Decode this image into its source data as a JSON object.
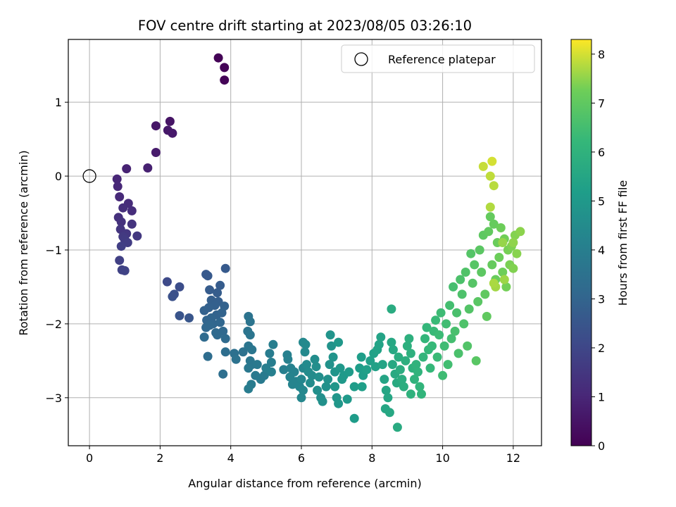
{
  "chart_data": {
    "type": "scatter",
    "title": "FOV centre drift starting at 2023/08/05 03:26:10",
    "xlabel": "Angular distance from reference (arcmin)",
    "ylabel": "Rotation from reference (arcmin)",
    "xlim": [
      -0.6,
      12.8
    ],
    "ylim": [
      -3.65,
      1.85
    ],
    "xticks": [
      0,
      2,
      4,
      6,
      8,
      10,
      12
    ],
    "yticks": [
      -3,
      -2,
      -1,
      0,
      1
    ],
    "grid": true,
    "legend": {
      "position": "top-right",
      "entries": [
        "Reference platepar"
      ]
    },
    "reference_point": {
      "label": "Reference platepar",
      "x": 0,
      "y": 0
    },
    "colorbar": {
      "label": "Hours from first FF file",
      "min": 0,
      "max": 8.3,
      "ticks": [
        0,
        1,
        2,
        3,
        4,
        5,
        6,
        7,
        8
      ],
      "colormap": "viridis"
    },
    "points": [
      [
        3.65,
        1.6,
        0.05
      ],
      [
        3.82,
        1.47,
        0.08
      ],
      [
        3.82,
        1.3,
        0.1
      ],
      [
        2.28,
        0.74,
        0.5
      ],
      [
        1.88,
        0.68,
        0.55
      ],
      [
        2.22,
        0.62,
        0.6
      ],
      [
        2.35,
        0.58,
        0.62
      ],
      [
        1.88,
        0.32,
        0.7
      ],
      [
        1.65,
        0.11,
        0.85
      ],
      [
        1.05,
        0.1,
        0.9
      ],
      [
        0.78,
        -0.04,
        1.0
      ],
      [
        0.8,
        -0.14,
        1.05
      ],
      [
        0.85,
        -0.28,
        1.1
      ],
      [
        1.1,
        -0.37,
        1.15
      ],
      [
        1.2,
        -0.47,
        1.2
      ],
      [
        0.95,
        -0.43,
        1.25
      ],
      [
        0.82,
        -0.56,
        1.3
      ],
      [
        0.9,
        -0.62,
        1.35
      ],
      [
        1.2,
        -0.65,
        1.4
      ],
      [
        0.88,
        -0.72,
        1.45
      ],
      [
        1.05,
        -0.78,
        1.5
      ],
      [
        1.35,
        -0.81,
        1.55
      ],
      [
        0.95,
        -0.82,
        1.6
      ],
      [
        1.0,
        -0.86,
        1.65
      ],
      [
        1.08,
        -0.9,
        1.7
      ],
      [
        0.9,
        -0.95,
        1.75
      ],
      [
        0.85,
        -1.14,
        1.8
      ],
      [
        0.92,
        -1.27,
        1.85
      ],
      [
        1.0,
        -1.28,
        1.9
      ],
      [
        2.2,
        -1.43,
        2.1
      ],
      [
        2.55,
        -1.5,
        2.2
      ],
      [
        2.4,
        -1.6,
        2.3
      ],
      [
        2.35,
        -1.63,
        2.35
      ],
      [
        2.55,
        -1.89,
        2.45
      ],
      [
        2.82,
        -1.92,
        2.5
      ],
      [
        3.3,
        -1.33,
        2.6
      ],
      [
        3.35,
        -1.35,
        2.62
      ],
      [
        3.85,
        -1.25,
        2.65
      ],
      [
        3.4,
        -1.54,
        2.7
      ],
      [
        3.7,
        -1.48,
        2.72
      ],
      [
        3.62,
        -1.58,
        2.75
      ],
      [
        3.45,
        -1.68,
        2.8
      ],
      [
        3.65,
        -1.7,
        2.82
      ],
      [
        3.55,
        -1.75,
        2.85
      ],
      [
        3.38,
        -1.78,
        2.88
      ],
      [
        3.25,
        -1.82,
        2.9
      ],
      [
        3.82,
        -1.76,
        2.92
      ],
      [
        3.6,
        -1.88,
        2.95
      ],
      [
        3.75,
        -1.85,
        2.98
      ],
      [
        3.45,
        -1.92,
        3.0
      ],
      [
        3.32,
        -1.95,
        3.02
      ],
      [
        3.5,
        -2.0,
        3.05
      ],
      [
        3.7,
        -1.98,
        3.08
      ],
      [
        3.3,
        -2.05,
        3.1
      ],
      [
        3.4,
        -2.02,
        3.12
      ],
      [
        3.78,
        -2.1,
        3.15
      ],
      [
        3.58,
        -2.12,
        3.18
      ],
      [
        3.62,
        -2.15,
        3.2
      ],
      [
        3.25,
        -2.18,
        3.22
      ],
      [
        3.85,
        -2.2,
        3.25
      ],
      [
        3.35,
        -2.44,
        3.3
      ],
      [
        3.85,
        -2.38,
        3.35
      ],
      [
        3.78,
        -2.68,
        3.4
      ],
      [
        4.1,
        -2.4,
        3.45
      ],
      [
        4.15,
        -2.48,
        3.5
      ],
      [
        4.35,
        -2.38,
        3.52
      ],
      [
        4.5,
        -1.9,
        3.55
      ],
      [
        4.55,
        -1.97,
        3.58
      ],
      [
        4.48,
        -2.1,
        3.6
      ],
      [
        4.55,
        -2.15,
        3.62
      ],
      [
        4.5,
        -2.3,
        3.65
      ],
      [
        4.6,
        -2.35,
        3.68
      ],
      [
        4.55,
        -2.5,
        3.7
      ],
      [
        4.6,
        -2.55,
        3.72
      ],
      [
        4.5,
        -2.6,
        3.75
      ],
      [
        4.75,
        -2.55,
        3.78
      ],
      [
        4.7,
        -2.7,
        3.8
      ],
      [
        4.85,
        -2.75,
        3.82
      ],
      [
        4.95,
        -2.7,
        3.85
      ],
      [
        4.58,
        -2.82,
        3.88
      ],
      [
        4.5,
        -2.88,
        3.9
      ],
      [
        5.1,
        -2.4,
        3.92
      ],
      [
        5.15,
        -2.52,
        3.95
      ],
      [
        5.2,
        -2.28,
        3.98
      ],
      [
        5.0,
        -2.6,
        4.0
      ],
      [
        5.15,
        -2.65,
        4.02
      ],
      [
        5.5,
        -2.62,
        4.05
      ],
      [
        5.6,
        -2.42,
        4.08
      ],
      [
        5.62,
        -2.48,
        4.1
      ],
      [
        5.7,
        -2.6,
        4.12
      ],
      [
        5.8,
        -2.65,
        4.15
      ],
      [
        5.68,
        -2.72,
        4.18
      ],
      [
        5.85,
        -2.78,
        4.2
      ],
      [
        5.75,
        -2.82,
        4.22
      ],
      [
        5.95,
        -2.85,
        4.25
      ],
      [
        6.05,
        -2.6,
        4.28
      ],
      [
        6.0,
        -2.75,
        4.3
      ],
      [
        6.05,
        -2.9,
        4.32
      ],
      [
        6.0,
        -3.0,
        4.35
      ],
      [
        6.05,
        -2.25,
        4.38
      ],
      [
        6.12,
        -2.28,
        4.4
      ],
      [
        6.1,
        -2.38,
        4.42
      ],
      [
        6.15,
        -2.55,
        4.45
      ],
      [
        6.2,
        -2.65,
        4.48
      ],
      [
        6.3,
        -2.7,
        4.5
      ],
      [
        6.25,
        -2.8,
        4.52
      ],
      [
        6.38,
        -2.48,
        4.55
      ],
      [
        6.42,
        -2.58,
        4.58
      ],
      [
        6.5,
        -2.72,
        4.6
      ],
      [
        6.45,
        -2.9,
        4.62
      ],
      [
        6.55,
        -3.0,
        4.65
      ],
      [
        6.6,
        -3.05,
        4.68
      ],
      [
        6.7,
        -2.85,
        4.7
      ],
      [
        6.75,
        -2.75,
        4.72
      ],
      [
        6.8,
        -2.55,
        4.75
      ],
      [
        6.85,
        -2.3,
        4.78
      ],
      [
        6.82,
        -2.15,
        4.8
      ],
      [
        6.9,
        -2.45,
        4.82
      ],
      [
        6.95,
        -2.65,
        4.85
      ],
      [
        6.95,
        -2.85,
        4.88
      ],
      [
        7.0,
        -3.0,
        4.9
      ],
      [
        7.05,
        -3.08,
        4.92
      ],
      [
        7.05,
        -2.25,
        4.95
      ],
      [
        7.1,
        -2.6,
        4.98
      ],
      [
        7.15,
        -2.75,
        5.0
      ],
      [
        7.2,
        -2.7,
        5.02
      ],
      [
        7.3,
        -3.02,
        5.05
      ],
      [
        7.35,
        -2.65,
        5.08
      ],
      [
        7.5,
        -2.85,
        5.1
      ],
      [
        7.5,
        -3.28,
        5.12
      ],
      [
        7.65,
        -2.6,
        5.15
      ],
      [
        7.7,
        -2.45,
        5.18
      ],
      [
        7.75,
        -2.7,
        5.2
      ],
      [
        7.72,
        -2.85,
        5.22
      ],
      [
        7.85,
        -2.62,
        5.25
      ],
      [
        7.95,
        -2.5,
        5.28
      ],
      [
        8.05,
        -2.4,
        5.3
      ],
      [
        8.1,
        -2.58,
        5.32
      ],
      [
        8.15,
        -2.35,
        5.35
      ],
      [
        8.2,
        -2.28,
        5.38
      ],
      [
        8.25,
        -2.18,
        5.4
      ],
      [
        8.3,
        -2.55,
        5.42
      ],
      [
        8.35,
        -2.75,
        5.45
      ],
      [
        8.4,
        -2.9,
        5.48
      ],
      [
        8.45,
        -3.0,
        5.5
      ],
      [
        8.38,
        -3.15,
        5.52
      ],
      [
        8.5,
        -3.2,
        5.55
      ],
      [
        8.55,
        -2.25,
        5.58
      ],
      [
        8.6,
        -2.35,
        5.6
      ],
      [
        8.58,
        -2.55,
        5.62
      ],
      [
        8.65,
        -2.68,
        5.65
      ],
      [
        8.7,
        -2.8,
        5.68
      ],
      [
        8.72,
        -3.4,
        5.7
      ],
      [
        8.55,
        -1.8,
        5.72
      ],
      [
        8.75,
        -2.45,
        5.75
      ],
      [
        8.8,
        -2.62,
        5.78
      ],
      [
        8.85,
        -2.75,
        5.8
      ],
      [
        8.9,
        -2.85,
        5.82
      ],
      [
        8.95,
        -2.5,
        5.85
      ],
      [
        9.0,
        -2.3,
        5.88
      ],
      [
        9.05,
        -2.2,
        5.9
      ],
      [
        9.1,
        -2.4,
        5.92
      ],
      [
        9.15,
        -2.6,
        5.95
      ],
      [
        9.1,
        -2.95,
        5.98
      ],
      [
        9.2,
        -2.75,
        6.0
      ],
      [
        9.25,
        -2.55,
        6.02
      ],
      [
        9.3,
        -2.65,
        6.05
      ],
      [
        9.35,
        -2.85,
        6.08
      ],
      [
        9.4,
        -2.95,
        6.1
      ],
      [
        9.45,
        -2.45,
        6.12
      ],
      [
        9.5,
        -2.2,
        6.15
      ],
      [
        9.55,
        -2.05,
        6.18
      ],
      [
        9.6,
        -2.35,
        6.2
      ],
      [
        9.65,
        -2.6,
        6.22
      ],
      [
        9.7,
        -2.3,
        6.25
      ],
      [
        9.75,
        -2.1,
        6.28
      ],
      [
        9.8,
        -1.95,
        6.3
      ],
      [
        9.85,
        -2.45,
        6.32
      ],
      [
        9.9,
        -2.15,
        6.35
      ],
      [
        9.95,
        -1.85,
        6.38
      ],
      [
        10.0,
        -2.7,
        6.4
      ],
      [
        10.05,
        -2.3,
        6.42
      ],
      [
        10.1,
        -2.0,
        6.45
      ],
      [
        10.15,
        -2.55,
        6.48
      ],
      [
        10.2,
        -1.75,
        6.5
      ],
      [
        10.25,
        -2.2,
        6.52
      ],
      [
        10.3,
        -1.5,
        6.55
      ],
      [
        10.35,
        -2.1,
        6.58
      ],
      [
        10.4,
        -1.85,
        6.6
      ],
      [
        10.45,
        -2.4,
        6.62
      ],
      [
        10.5,
        -1.4,
        6.65
      ],
      [
        10.55,
        -1.6,
        6.68
      ],
      [
        10.6,
        -2.0,
        6.7
      ],
      [
        10.65,
        -1.3,
        6.72
      ],
      [
        10.7,
        -2.3,
        6.75
      ],
      [
        10.75,
        -1.8,
        6.78
      ],
      [
        10.8,
        -1.05,
        6.8
      ],
      [
        10.85,
        -1.45,
        6.82
      ],
      [
        10.9,
        -1.2,
        6.85
      ],
      [
        10.95,
        -2.5,
        6.88
      ],
      [
        11.0,
        -1.7,
        6.9
      ],
      [
        11.05,
        -1.0,
        6.92
      ],
      [
        11.1,
        -1.3,
        6.95
      ],
      [
        11.15,
        -0.8,
        6.98
      ],
      [
        11.2,
        -1.6,
        7.0
      ],
      [
        11.25,
        -1.9,
        7.02
      ],
      [
        11.3,
        -0.75,
        7.05
      ],
      [
        11.35,
        -0.55,
        7.08
      ],
      [
        11.4,
        -1.2,
        7.1
      ],
      [
        11.45,
        -0.65,
        7.12
      ],
      [
        11.5,
        -1.4,
        7.15
      ],
      [
        11.55,
        -0.9,
        7.18
      ],
      [
        11.6,
        -1.1,
        7.2
      ],
      [
        11.65,
        -0.7,
        7.22
      ],
      [
        11.7,
        -1.3,
        7.25
      ],
      [
        11.75,
        -0.85,
        7.28
      ],
      [
        11.8,
        -1.5,
        7.3
      ],
      [
        11.85,
        -1.0,
        7.32
      ],
      [
        11.9,
        -1.2,
        7.35
      ],
      [
        11.95,
        -0.95,
        7.38
      ],
      [
        12.0,
        -1.25,
        7.4
      ],
      [
        12.05,
        -0.8,
        7.42
      ],
      [
        12.1,
        -1.05,
        7.45
      ],
      [
        12.2,
        -0.75,
        7.48
      ],
      [
        12.0,
        -0.9,
        7.5
      ],
      [
        11.7,
        -0.9,
        7.55
      ],
      [
        11.75,
        -1.4,
        7.6
      ],
      [
        11.5,
        -1.5,
        7.65
      ],
      [
        11.45,
        -1.45,
        7.7
      ],
      [
        11.35,
        -0.42,
        7.75
      ],
      [
        11.45,
        -0.13,
        7.8
      ],
      [
        11.35,
        0.0,
        7.85
      ],
      [
        11.15,
        0.13,
        7.9
      ],
      [
        11.4,
        0.2,
        8.0
      ]
    ]
  }
}
